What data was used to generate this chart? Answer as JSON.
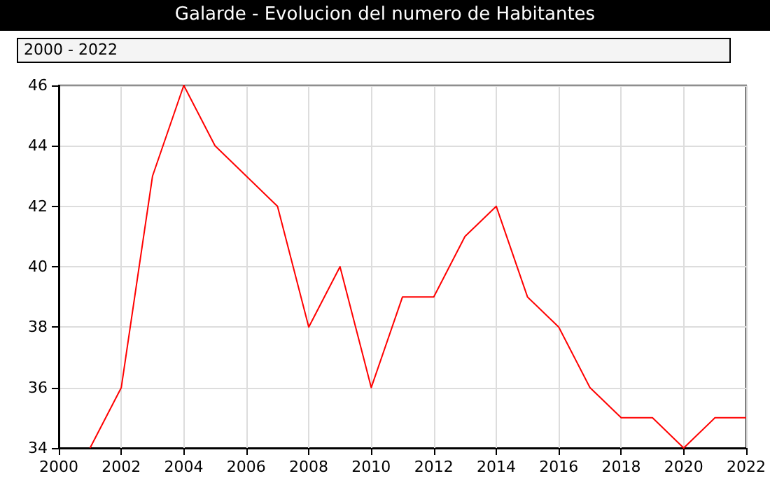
{
  "chart_data": {
    "type": "line",
    "title": "Galarde - Evolucion del numero de Habitantes",
    "subtitle": "2000 - 2022",
    "x": [
      2001,
      2002,
      2003,
      2004,
      2005,
      2006,
      2007,
      2008,
      2009,
      2010,
      2011,
      2012,
      2013,
      2014,
      2015,
      2016,
      2017,
      2018,
      2019,
      2020,
      2021,
      2022
    ],
    "series": [
      {
        "color": "#ff0000",
        "values": [
          34,
          36,
          43,
          46,
          44,
          43,
          42,
          38,
          40,
          36,
          39,
          39,
          41,
          42,
          39,
          38,
          36,
          35,
          35,
          34,
          35,
          35
        ]
      }
    ],
    "xlim": [
      2000,
      2022
    ],
    "xticks": [
      2000,
      2002,
      2004,
      2006,
      2008,
      2010,
      2012,
      2014,
      2016,
      2018,
      2020,
      2022
    ],
    "ylim": [
      34,
      46
    ],
    "yticks": [
      34,
      36,
      38,
      40,
      42,
      44,
      46
    ],
    "grid": true,
    "marker": "none",
    "line_style": "solid"
  }
}
